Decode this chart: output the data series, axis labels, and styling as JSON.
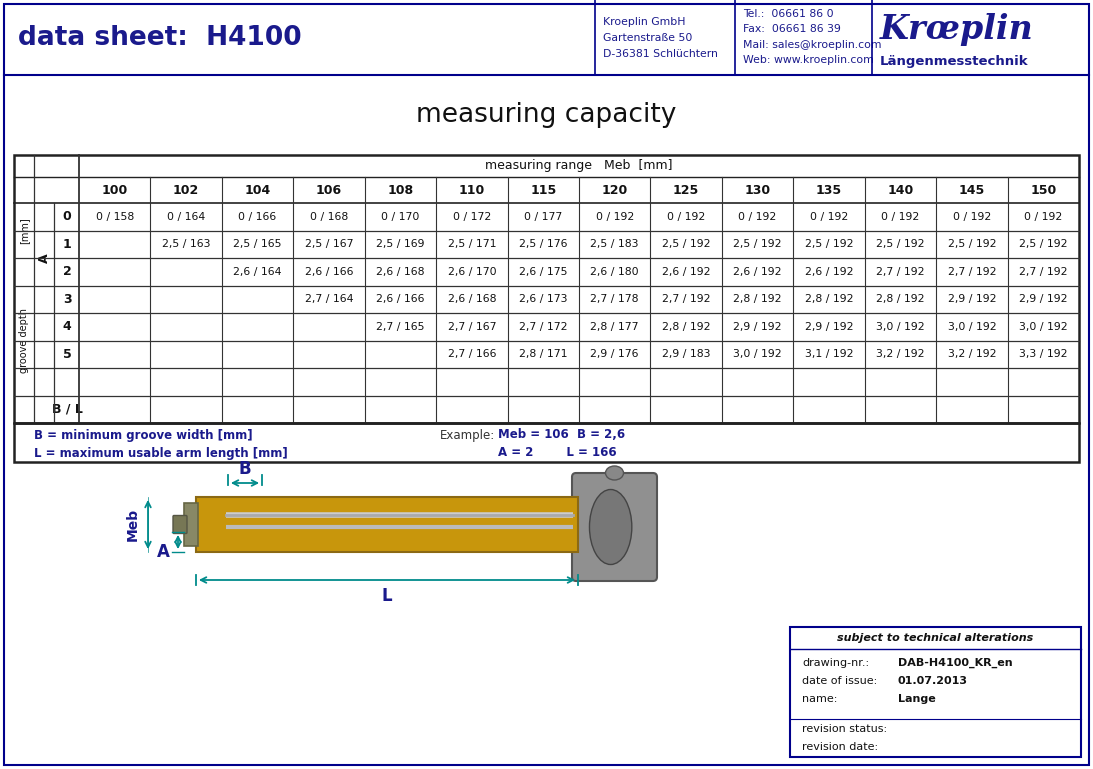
{
  "title_left": "data sheet:  H4100",
  "blue_dark": "#1a1a8c",
  "teal_color": "#008B8B",
  "header_company": "Kroeplin GmbH\nGartenstraße 50\nD-36381 Schlüchtern",
  "header_contact": "Tel.:  06661 86 0\nFax:  06661 86 39\nMail: sales@kroeplin.com\nWeb: www.kroeplin.com",
  "header_brand": "Krœplin",
  "header_brand2": "Längenmesstechnik",
  "table_title": "measuring capacity",
  "table_header_label": "measuring range   Meb  [mm]",
  "col_headers": [
    "100",
    "102",
    "104",
    "106",
    "108",
    "110",
    "115",
    "120",
    "125",
    "130",
    "135",
    "140",
    "145",
    "150"
  ],
  "row_headers": [
    "0",
    "1",
    "2",
    "3",
    "4",
    "5",
    "",
    "B / L"
  ],
  "table_data": [
    [
      "0 / 158",
      "0 / 164",
      "0 / 166",
      "0 / 168",
      "0 / 170",
      "0 / 172",
      "0 / 177",
      "0 / 192",
      "0 / 192",
      "0 / 192",
      "0 / 192",
      "0 / 192",
      "0 / 192",
      "0 / 192"
    ],
    [
      "",
      "2,5 / 163",
      "2,5 / 165",
      "2,5 / 167",
      "2,5 / 169",
      "2,5 / 171",
      "2,5 / 176",
      "2,5 / 183",
      "2,5 / 192",
      "2,5 / 192",
      "2,5 / 192",
      "2,5 / 192",
      "2,5 / 192",
      "2,5 / 192"
    ],
    [
      "",
      "",
      "2,6 / 164",
      "2,6 / 166",
      "2,6 / 168",
      "2,6 / 170",
      "2,6 / 175",
      "2,6 / 180",
      "2,6 / 192",
      "2,6 / 192",
      "2,6 / 192",
      "2,7 / 192",
      "2,7 / 192",
      "2,7 / 192"
    ],
    [
      "",
      "",
      "",
      "2,7 / 164",
      "2,6 / 166",
      "2,6 / 168",
      "2,6 / 173",
      "2,7 / 178",
      "2,7 / 192",
      "2,8 / 192",
      "2,8 / 192",
      "2,8 / 192",
      "2,9 / 192",
      "2,9 / 192"
    ],
    [
      "",
      "",
      "",
      "",
      "2,7 / 165",
      "2,7 / 167",
      "2,7 / 172",
      "2,8 / 177",
      "2,8 / 192",
      "2,9 / 192",
      "2,9 / 192",
      "3,0 / 192",
      "3,0 / 192",
      "3,0 / 192"
    ],
    [
      "",
      "",
      "",
      "",
      "",
      "2,7 / 166",
      "2,8 / 171",
      "2,9 / 176",
      "2,9 / 183",
      "3,0 / 192",
      "3,1 / 192",
      "3,2 / 192",
      "3,2 / 192",
      "3,3 / 192"
    ],
    [
      "",
      "",
      "",
      "",
      "",
      "",
      "",
      "",
      "",
      "",
      "",
      "",
      "",
      ""
    ],
    [
      "",
      "",
      "",
      "",
      "",
      "",
      "",
      "",
      "",
      "",
      "",
      "",
      "",
      ""
    ]
  ],
  "note1": "B = minimum groove width [mm]",
  "note2": "L = maximum usable arm length [mm]",
  "example_label": "Example:",
  "example1": "Meb = 106  B = 2,6",
  "example2": "A = 2        L = 166",
  "drawing_nr": "DAB-H4100_KR_en",
  "date_of_issue": "01.07.2013",
  "name_val": "Lange",
  "subject_text": "subject to technical alterations",
  "bg_color": "#ffffff",
  "border_color": "#00008B",
  "arm_color": "#C8960C",
  "arm_dark": "#8B6914"
}
